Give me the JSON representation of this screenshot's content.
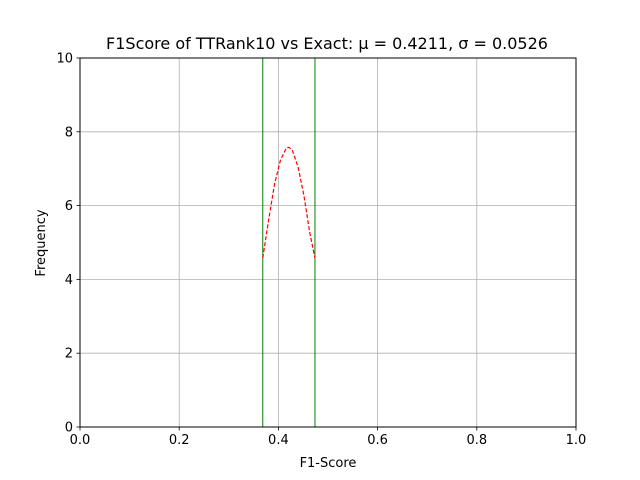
{
  "chart_data": {
    "type": "line",
    "title": "F1Score of TTRank10 vs Exact:  μ = 0.4211,  σ = 0.0526",
    "xlabel": "F1-Score",
    "ylabel": "Frequency",
    "xlim": [
      0.0,
      1.0
    ],
    "ylim": [
      0,
      10
    ],
    "xticks": [
      0.0,
      0.2,
      0.4,
      0.6,
      0.8,
      1.0
    ],
    "xtick_labels": [
      "0.0",
      "0.2",
      "0.4",
      "0.6",
      "0.8",
      "1.0"
    ],
    "yticks": [
      0,
      2,
      4,
      6,
      8,
      10
    ],
    "ytick_labels": [
      "0",
      "2",
      "4",
      "6",
      "8",
      "10"
    ],
    "grid": true,
    "series": [
      {
        "style": "dashed",
        "color": "#ff0000",
        "x": [
          0.3685,
          0.3804,
          0.3922,
          0.4041,
          0.4159,
          0.4211,
          0.4278,
          0.4396,
          0.4515,
          0.4633,
          0.4737
        ],
        "y": [
          4.58,
          5.62,
          6.58,
          7.23,
          7.56,
          7.58,
          7.51,
          7.05,
          6.27,
          5.26,
          4.58
        ]
      }
    ],
    "vertical_lines": {
      "color": "#008000",
      "x": [
        0.3685,
        0.4737
      ]
    }
  }
}
